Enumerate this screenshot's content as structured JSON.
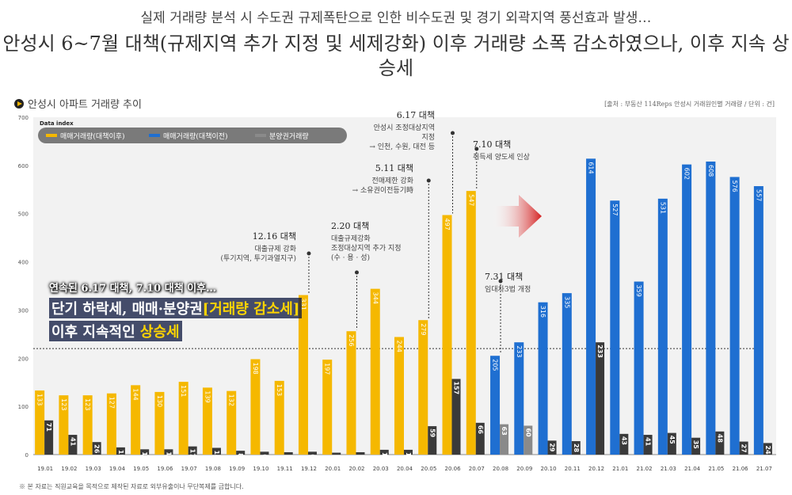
{
  "header": {
    "line1": "실제 거래량 분석 시 수도권 규제폭탄으로 인한 비수도권 및 경기 외곽지역 풍선효과 발생…",
    "line2": "안성시 6~7월 대책(규제지역 추가 지정 및 세제강화) 이후 거래량 소폭 감소하였으나, 이후 지속 상승세"
  },
  "section_title": "안성시 아파트 거래량 추이",
  "source_note": "[출처 : 부동산 114Reps 안성시 거래원인별 거래량 / 단위 : 건]",
  "footer_note": "※ 본 자료는 직원교육을 목적으로 제작된 자료로 외부유출이나 무단복제를 금합니다.",
  "legend_title": "Data index",
  "emphasis": {
    "line1": "연속된 6.17 대책, 7.10 대책 이후…",
    "line2a": "단기 하락세, 매매·분양권",
    "line2b": "[거래량 감소세]",
    "line3a": "이후 지속적인",
    "line3b": "상승세"
  },
  "annotations": [
    {
      "id": "a1216",
      "title": "12.16 대책",
      "lines": [
        "대출규제 강화",
        "(투기지역, 투기과열지구)"
      ]
    },
    {
      "id": "a220",
      "title": "2.20 대책",
      "lines": [
        "대출규제강화",
        "조정대상지역 추가 지정",
        "(수 · 용 · 성)"
      ]
    },
    {
      "id": "a511",
      "title": "5.11 대책",
      "lines": [
        "전매제한 강화",
        "→ 소유권이전등기時"
      ]
    },
    {
      "id": "a617",
      "title": "6.17 대책",
      "lines": [
        "안성시 조정대상지역",
        "지정",
        "→ 인천, 수원, 대전 등"
      ]
    },
    {
      "id": "a710",
      "title": "7.10 대책",
      "lines": [
        "취득세 양도세 인상"
      ]
    },
    {
      "id": "a731",
      "title": "7.31 대책",
      "lines": [
        "임대차3법 개정"
      ]
    }
  ],
  "colors": {
    "before": "#f5b800",
    "after": "#1f6fd1",
    "presale": "#3a3a3a",
    "presale_light": "#8a8a8a",
    "arrow": "#d42020",
    "plot_bg": "#f2f2f2"
  },
  "chart_data": {
    "type": "bar",
    "title": "",
    "xlabel": "",
    "ylabel": "",
    "ylim": [
      0,
      700
    ],
    "yticks": [
      0,
      100,
      200,
      300,
      400,
      500,
      600,
      700
    ],
    "grid": false,
    "legend_position": "top-left",
    "reference_line": 220,
    "categories": [
      "19.01",
      "19.02",
      "19.03",
      "19.04",
      "19.05",
      "19.06",
      "19.07",
      "19.08",
      "19.09",
      "19.10",
      "19.11",
      "19.12",
      "20.01",
      "20.02",
      "20.03",
      "20.04",
      "20.05",
      "20.06",
      "20.07",
      "20.08",
      "20.09",
      "20.10",
      "20.11",
      "20.12",
      "21.01",
      "21.02",
      "21.03",
      "21.04",
      "21.05",
      "21.06",
      "21.07"
    ],
    "series": [
      {
        "name": "매매거래량(대책이후)",
        "key": "sale_before",
        "values": [
          133,
          123,
          123,
          127,
          144,
          130,
          151,
          139,
          132,
          198,
          153,
          331,
          197,
          256,
          344,
          244,
          279,
          497,
          547,
          null,
          null,
          null,
          null,
          null,
          null,
          null,
          null,
          null,
          null,
          null,
          null
        ]
      },
      {
        "name": "매매거래량(대책이전)",
        "key": "sale_after",
        "values": [
          null,
          null,
          null,
          null,
          null,
          null,
          null,
          null,
          null,
          null,
          null,
          null,
          null,
          null,
          null,
          null,
          null,
          null,
          null,
          205,
          233,
          316,
          335,
          614,
          527,
          359,
          531,
          602,
          608,
          576,
          557
        ]
      },
      {
        "name": "분양권거래량",
        "key": "presale",
        "values": [
          71,
          41,
          26,
          15,
          11,
          11,
          17,
          14,
          8,
          6,
          5,
          6,
          4,
          5,
          10,
          10,
          59,
          157,
          66,
          63,
          60,
          29,
          28,
          233,
          43,
          41,
          45,
          35,
          48,
          27,
          24
        ]
      }
    ]
  }
}
